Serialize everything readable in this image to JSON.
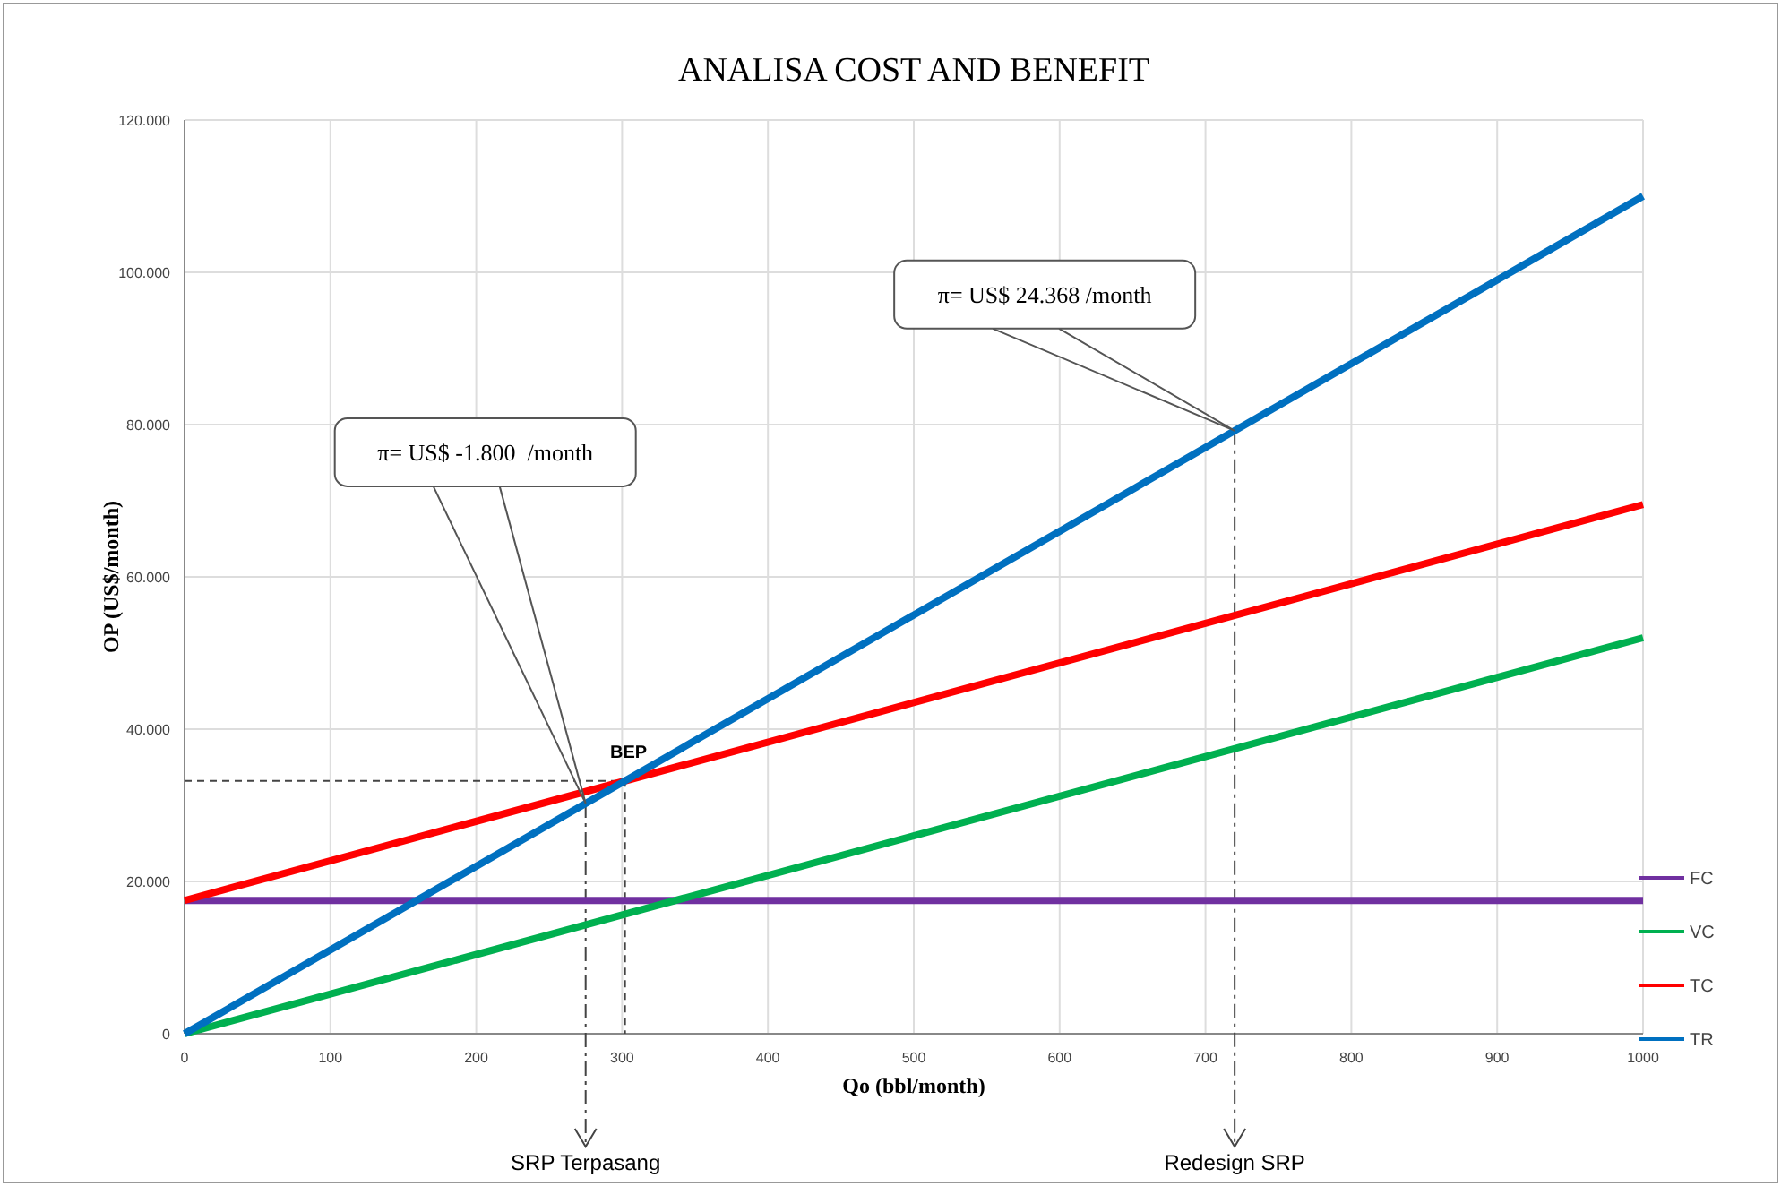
{
  "chart_data": {
    "type": "line",
    "title": "ANALISA COST AND BENEFIT",
    "xlabel": "Qo (bbl/month)",
    "ylabel": "OP (US$/month)",
    "x": [
      0,
      1000
    ],
    "series": [
      {
        "name": "FC",
        "color": "#7030a0",
        "values": [
          17500,
          17500
        ]
      },
      {
        "name": "VC",
        "color": "#00b050",
        "values": [
          0,
          52000
        ]
      },
      {
        "name": "TC",
        "color": "#ff0000",
        "values": [
          17500,
          69500
        ]
      },
      {
        "name": "TR",
        "color": "#0070c0",
        "values": [
          0,
          110000
        ]
      }
    ],
    "xlim": [
      0,
      1000
    ],
    "xticks": [
      0,
      100,
      200,
      300,
      400,
      500,
      600,
      700,
      800,
      900,
      1000
    ],
    "ylim": [
      0,
      120000
    ],
    "yticks": [
      0,
      {
        "value": 20000,
        "label": "20.000"
      },
      {
        "value": 40000,
        "label": "40.000"
      },
      {
        "value": 60000,
        "label": "60.000"
      },
      {
        "value": 80000,
        "label": "80.000"
      },
      {
        "value": 100000,
        "label": "100.000"
      },
      {
        "value": 120000,
        "label": "120.000"
      }
    ],
    "grid": true,
    "legend": "right",
    "marker": "none",
    "line_style": "solid",
    "annotations": [
      {
        "text": "π= US$ -1.800  /month",
        "x": 275,
        "y": 30250
      },
      {
        "text": "π= US$ 24.368 /month",
        "x": 720,
        "y": 79200
      },
      {
        "text": "BEP",
        "x": 302,
        "y": 33200
      },
      {
        "text": "SRP Terpasang",
        "x": 275,
        "y": 30250
      },
      {
        "text": "Redesign SRP",
        "x": 720,
        "y": 79200
      }
    ]
  }
}
